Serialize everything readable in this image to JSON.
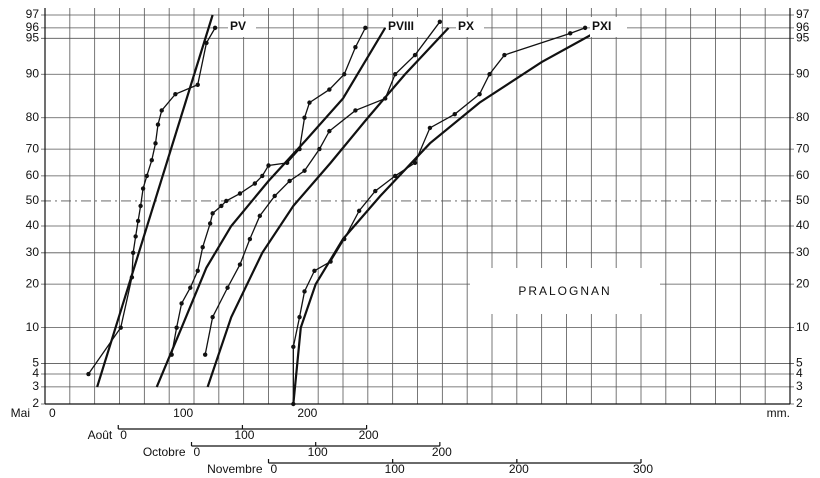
{
  "chart_data": {
    "type": "line",
    "yscale": "probit",
    "ylim": [
      2,
      97
    ],
    "yticks": [
      2,
      3,
      4,
      5,
      10,
      20,
      30,
      40,
      50,
      60,
      70,
      80,
      90,
      95,
      96,
      97
    ],
    "median_line": 50,
    "xlim": [
      0,
      600
    ],
    "xticks": [
      0,
      100,
      200
    ],
    "xgrid": [
      0,
      20,
      40,
      60,
      80,
      100,
      120,
      140,
      160,
      180,
      200,
      220,
      240,
      260,
      280,
      300,
      320,
      340,
      360,
      380,
      400,
      420,
      440,
      460,
      480,
      500,
      520,
      540,
      560,
      580,
      600
    ],
    "x_axis_label": "Mai",
    "x_unit": "mm.",
    "extra_axes": [
      {
        "label": "Août",
        "xlim": [
          -59,
          541
        ],
        "ticks": [
          0,
          100,
          200
        ]
      },
      {
        "label": "Octobre",
        "xlim": [
          -118,
          482
        ],
        "ticks": [
          0,
          100,
          200
        ]
      },
      {
        "label": "Novembre",
        "xlim": [
          -180,
          420
        ],
        "ticks": [
          0,
          100,
          200,
          300
        ]
      }
    ],
    "annotation": "PRALOGNAN",
    "series": [
      {
        "name": "PV",
        "color": "#111111",
        "x": [
          35,
          61,
          70,
          71,
          73,
          75,
          77,
          79,
          82,
          86,
          89,
          91,
          94,
          105,
          123,
          130,
          137
        ],
        "values": [
          4,
          10,
          22,
          30,
          36,
          42,
          48,
          55,
          60,
          66,
          72,
          78,
          82,
          86,
          88,
          94.5,
          96
        ],
        "fit": {
          "x": [
            42,
            135
          ],
          "values": [
            3,
            97
          ]
        }
      },
      {
        "name": "PVIII",
        "color": "#111111",
        "x": [
          102,
          106,
          110,
          117,
          123,
          127,
          133,
          135,
          142,
          146,
          157,
          169,
          175,
          180,
          195,
          205,
          209,
          213,
          229,
          241,
          250,
          258
        ],
        "values": [
          6,
          10,
          15,
          19,
          24,
          32,
          41,
          45,
          48,
          50,
          53,
          57,
          60,
          64,
          65,
          70,
          80,
          84,
          87,
          90,
          94,
          96
        ],
        "fit": {
          "x": [
            90,
            110,
            130,
            150,
            180,
            210,
            240,
            274
          ],
          "values": [
            3,
            10,
            25,
            40,
            58,
            73,
            85,
            96
          ]
        }
      },
      {
        "name": "PX",
        "color": "#111111",
        "x": [
          129,
          135,
          147,
          157,
          165,
          173,
          185,
          197,
          209,
          221,
          229,
          250,
          274,
          282,
          298,
          318
        ],
        "values": [
          6,
          12,
          19,
          26,
          35,
          44,
          52,
          58,
          62,
          70,
          76,
          82,
          85,
          90,
          93,
          96.5
        ],
        "fit": {
          "x": [
            131,
            150,
            175,
            200,
            230,
            260,
            290,
            325
          ],
          "values": [
            3,
            12,
            30,
            48,
            65,
            80,
            90,
            96
          ]
        }
      },
      {
        "name": "PXI",
        "color": "#111111",
        "x": [
          200,
          200,
          205,
          209,
          217,
          230,
          241,
          253,
          266,
          282,
          298,
          310,
          330,
          350,
          358,
          370,
          423,
          435
        ],
        "values": [
          2,
          7,
          12,
          18,
          24,
          27,
          35,
          46,
          54,
          60,
          65,
          77,
          81,
          86,
          90,
          93,
          95.5,
          96
        ],
        "fit": {
          "x": [
            200,
            206,
            218,
            240,
            270,
            310,
            350,
            400,
            450
          ],
          "values": [
            2,
            10,
            20,
            35,
            52,
            72,
            84,
            92,
            96
          ]
        }
      }
    ]
  }
}
